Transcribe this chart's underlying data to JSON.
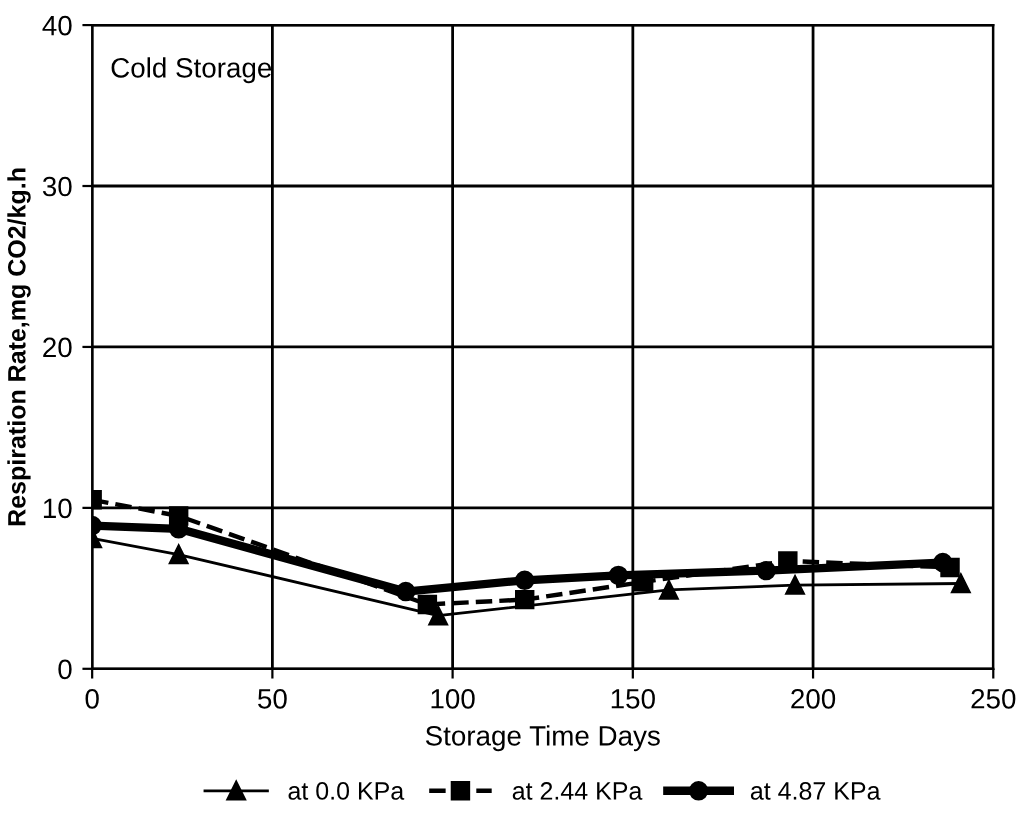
{
  "chart_data": {
    "type": "line",
    "xlabel": "Storage Time Days",
    "ylabel": "Respiration Rate,mg CO2/kg.h",
    "annotations": [
      "Cold Storage"
    ],
    "xlim": [
      0,
      250
    ],
    "xticks": [
      0,
      50,
      100,
      150,
      200,
      250
    ],
    "ylim": [
      0,
      40
    ],
    "yticks": [
      0,
      10,
      20,
      30,
      40
    ],
    "grid": true,
    "legend": "bottom",
    "series": [
      {
        "name": "at 0.0 KPa",
        "color": "#000000",
        "marker": "triangle",
        "line_style": "solid",
        "x": [
          0,
          24,
          96,
          160,
          195,
          241
        ],
        "values": [
          8.1,
          7.1,
          3.3,
          4.9,
          5.2,
          5.3
        ]
      },
      {
        "name": "at 2.44 KPa",
        "color": "#000000",
        "marker": "square",
        "line_style": "dashed",
        "x": [
          0,
          24,
          93,
          120,
          153,
          193,
          238
        ],
        "values": [
          10.5,
          9.5,
          4.0,
          4.3,
          5.4,
          6.7,
          6.3
        ]
      },
      {
        "name": "at 4.87 KPa",
        "color": "#000000",
        "marker": "circle",
        "line_style": "solid",
        "x": [
          0,
          24,
          87,
          120,
          146,
          187,
          236
        ],
        "values": [
          8.9,
          8.7,
          4.8,
          5.5,
          5.8,
          6.1,
          6.6
        ]
      }
    ]
  }
}
